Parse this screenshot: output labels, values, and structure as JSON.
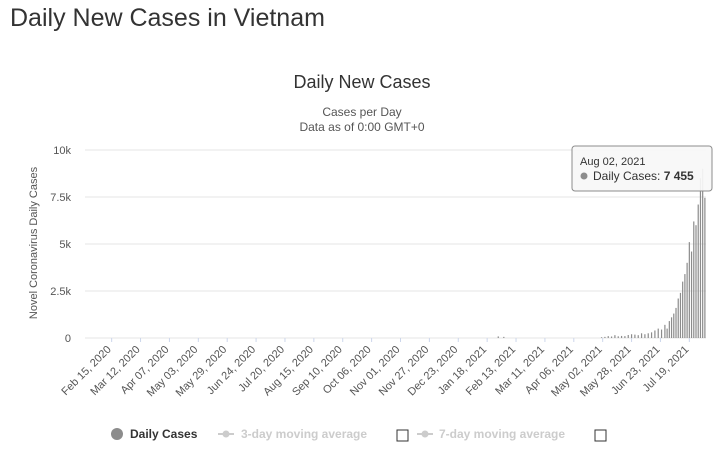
{
  "page": {
    "title": "Daily New Cases in Vietnam"
  },
  "colors": {
    "series": "#8c8c8c",
    "legend_inactive": "#cccccc",
    "grid": "#e6e6e6"
  },
  "legend": {
    "items": [
      {
        "label": "Daily Cases",
        "active": true,
        "icon": "circle-marker-icon"
      },
      {
        "label": "3-day moving average",
        "active": false,
        "icon": "line-marker-icon",
        "checkbox": false
      },
      {
        "label": "7-day moving average",
        "active": false,
        "icon": "line-marker-icon",
        "checkbox": false
      }
    ]
  },
  "tooltip": {
    "date": "Aug 02, 2021",
    "series": "Daily Cases",
    "value": "7 455"
  },
  "chart_data": {
    "type": "bar",
    "title": "Daily New Cases",
    "subtitle_lines": [
      "Cases per Day",
      "Data as of 0:00 GMT+0"
    ],
    "ylabel": "Novel Coronavirus Daily Cases",
    "xlabel": "",
    "ylim": [
      0,
      10000
    ],
    "y_ticks": [
      "0",
      "2.5k",
      "5k",
      "7.5k",
      "10k"
    ],
    "y_tick_values": [
      0,
      2500,
      5000,
      7500,
      10000
    ],
    "grid": true,
    "legend_position": "bottom",
    "x_range": [
      "2020-01-22",
      "2021-08-03"
    ],
    "x_ticks": [
      "Feb 15, 2020",
      "Mar 12, 2020",
      "Apr 07, 2020",
      "May 03, 2020",
      "May 29, 2020",
      "Jun 24, 2020",
      "Jul 20, 2020",
      "Aug 15, 2020",
      "Sep 10, 2020",
      "Oct 06, 2020",
      "Nov 01, 2020",
      "Nov 27, 2020",
      "Dec 23, 2020",
      "Jan 18, 2021",
      "Feb 13, 2021",
      "Mar 11, 2021",
      "Apr 06, 2021",
      "May 02, 2021",
      "May 28, 2021",
      "Jun 23, 2021",
      "Jul 19, 2021"
    ],
    "x_tick_dates": [
      "2020-02-15",
      "2020-03-12",
      "2020-04-07",
      "2020-05-03",
      "2020-05-29",
      "2020-06-24",
      "2020-07-20",
      "2020-08-15",
      "2020-09-10",
      "2020-10-06",
      "2020-11-01",
      "2020-11-27",
      "2020-12-23",
      "2021-01-18",
      "2021-02-13",
      "2021-03-11",
      "2021-04-06",
      "2021-05-02",
      "2021-05-28",
      "2021-06-23",
      "2021-07-19"
    ],
    "series": [
      {
        "name": "Daily Cases",
        "points": [
          [
            "2021-01-28",
            84
          ],
          [
            "2021-02-02",
            60
          ],
          [
            "2021-05-01",
            40
          ],
          [
            "2021-05-04",
            60
          ],
          [
            "2021-05-07",
            100
          ],
          [
            "2021-05-10",
            80
          ],
          [
            "2021-05-13",
            150
          ],
          [
            "2021-05-16",
            90
          ],
          [
            "2021-05-19",
            110
          ],
          [
            "2021-05-22",
            100
          ],
          [
            "2021-05-25",
            160
          ],
          [
            "2021-05-28",
            200
          ],
          [
            "2021-05-31",
            180
          ],
          [
            "2021-06-03",
            150
          ],
          [
            "2021-06-06",
            250
          ],
          [
            "2021-06-09",
            200
          ],
          [
            "2021-06-12",
            250
          ],
          [
            "2021-06-15",
            300
          ],
          [
            "2021-06-18",
            400
          ],
          [
            "2021-06-21",
            500
          ],
          [
            "2021-06-24",
            450
          ],
          [
            "2021-06-27",
            700
          ],
          [
            "2021-06-29",
            500
          ],
          [
            "2021-07-01",
            900
          ],
          [
            "2021-07-03",
            1100
          ],
          [
            "2021-07-05",
            1300
          ],
          [
            "2021-07-07",
            1600
          ],
          [
            "2021-07-09",
            2100
          ],
          [
            "2021-07-11",
            2400
          ],
          [
            "2021-07-13",
            3000
          ],
          [
            "2021-07-15",
            3400
          ],
          [
            "2021-07-17",
            4000
          ],
          [
            "2021-07-19",
            5100
          ],
          [
            "2021-07-21",
            4600
          ],
          [
            "2021-07-23",
            6200
          ],
          [
            "2021-07-25",
            6000
          ],
          [
            "2021-07-27",
            7100
          ],
          [
            "2021-07-29",
            8500
          ],
          [
            "2021-07-31",
            9000
          ],
          [
            "2021-08-02",
            7455
          ]
        ]
      }
    ]
  }
}
